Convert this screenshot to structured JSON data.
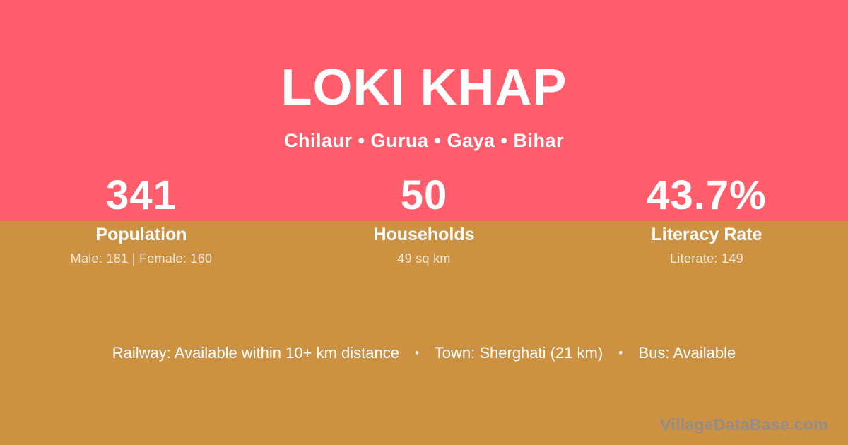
{
  "colors": {
    "pink": "#FF5D6B",
    "gold": "#CD9142",
    "white": "#FFFFFF",
    "watermark_gray": "#8D8D91"
  },
  "header": {
    "title": "LOKI KHAP",
    "subtitle": "Chilaur • Gurua • Gaya • Bihar"
  },
  "stats": [
    {
      "value": "341",
      "label": "Population",
      "detail": "Male: 181 | Female: 160"
    },
    {
      "value": "50",
      "label": "Households",
      "detail": "49 sq km"
    },
    {
      "value": "43.7%",
      "label": "Literacy Rate",
      "detail": "Literate: 149"
    }
  ],
  "footer": {
    "segments": [
      "Railway: Available within 10+ km distance",
      "Town: Sherghati (21 km)",
      "Bus: Available"
    ],
    "separator": "•",
    "watermark": "VillageDataBase.com"
  }
}
